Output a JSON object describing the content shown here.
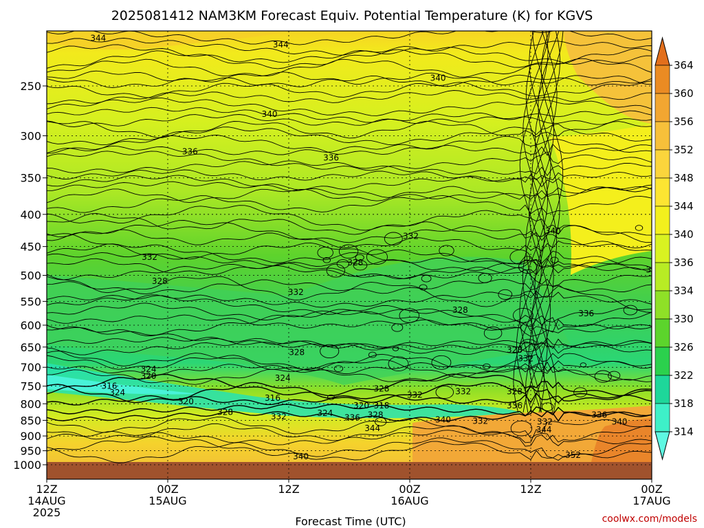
{
  "chart_data": {
    "type": "contour",
    "title": "2025081412 NAM3KM Forecast Equiv. Potential Temperature (K) for KGVS",
    "xlabel": "Forecast Time (UTC)",
    "ylabel": "",
    "credit": "coolwx.com/models",
    "y_scale": "log-pressure",
    "ylim": [
      1000,
      200
    ],
    "y_ticks": [
      "250",
      "300",
      "350",
      "400",
      "450",
      "500",
      "550",
      "600",
      "650",
      "700",
      "750",
      "800",
      "850",
      "900",
      "950",
      "1000"
    ],
    "y_tick_values": [
      250,
      300,
      350,
      400,
      450,
      500,
      550,
      600,
      650,
      700,
      750,
      800,
      850,
      900,
      950,
      1000
    ],
    "xlim": [
      0,
      60
    ],
    "x_ticks": [
      {
        "h": 0,
        "line1": "12Z",
        "line2": "14AUG",
        "line3": "2025"
      },
      {
        "h": 12,
        "line1": "00Z",
        "line2": "15AUG",
        "line3": ""
      },
      {
        "h": 24,
        "line1": "12Z",
        "line2": "",
        "line3": ""
      },
      {
        "h": 36,
        "line1": "00Z",
        "line2": "16AUG",
        "line3": ""
      },
      {
        "h": 48,
        "line1": "12Z",
        "line2": "",
        "line3": ""
      },
      {
        "h": 60,
        "line1": "00Z",
        "line2": "17AUG",
        "line3": ""
      }
    ],
    "grid": true,
    "colorbar": {
      "levels": [
        "364",
        "360",
        "356",
        "352",
        "348",
        "344",
        "340",
        "336",
        "334",
        "330",
        "326",
        "322",
        "318",
        "314"
      ],
      "colors": [
        "#e26f1c",
        "#ea8b23",
        "#f2a631",
        "#f7c03a",
        "#fbd53c",
        "#fde532",
        "#f3f01d",
        "#d9f221",
        "#b8ec24",
        "#8fe027",
        "#5cd42c",
        "#2bd14d",
        "#1ed79a",
        "#3ef0c8",
        "#5ff8e2"
      ]
    },
    "contour_labels": [
      {
        "text": "344",
        "h": 5.1,
        "p": 210
      },
      {
        "text": "344",
        "h": 23.2,
        "p": 215
      },
      {
        "text": "340",
        "h": 38.8,
        "p": 243
      },
      {
        "text": "340",
        "h": 22.1,
        "p": 277
      },
      {
        "text": "336",
        "h": 14.2,
        "p": 318
      },
      {
        "text": "336",
        "h": 28.2,
        "p": 325
      },
      {
        "text": "340",
        "h": 50.2,
        "p": 425
      },
      {
        "text": "332",
        "h": 36.1,
        "p": 433
      },
      {
        "text": "332",
        "h": 10.2,
        "p": 468
      },
      {
        "text": "328",
        "h": 30.6,
        "p": 477
      },
      {
        "text": "332",
        "h": 60.2,
        "p": 490
      },
      {
        "text": "328",
        "h": 11.2,
        "p": 511
      },
      {
        "text": "332",
        "h": 24.7,
        "p": 532
      },
      {
        "text": "328",
        "h": 41.0,
        "p": 568
      },
      {
        "text": "336",
        "h": 53.5,
        "p": 575
      },
      {
        "text": "328",
        "h": 46.4,
        "p": 657
      },
      {
        "text": "332",
        "h": 47.5,
        "p": 678
      },
      {
        "text": "328",
        "h": 24.8,
        "p": 663
      },
      {
        "text": "324",
        "h": 10.1,
        "p": 705
      },
      {
        "text": "320",
        "h": 10.1,
        "p": 723
      },
      {
        "text": "324",
        "h": 23.4,
        "p": 728
      },
      {
        "text": "328",
        "h": 33.2,
        "p": 757
      },
      {
        "text": "316",
        "h": 6.2,
        "p": 750
      },
      {
        "text": "324",
        "h": 7.0,
        "p": 768
      },
      {
        "text": "332",
        "h": 36.5,
        "p": 775
      },
      {
        "text": "332",
        "h": 41.3,
        "p": 765
      },
      {
        "text": "328",
        "h": 46.4,
        "p": 765
      },
      {
        "text": "316",
        "h": 22.4,
        "p": 783
      },
      {
        "text": "320",
        "h": 13.8,
        "p": 793
      },
      {
        "text": "320",
        "h": 31.2,
        "p": 805
      },
      {
        "text": "318",
        "h": 33.2,
        "p": 805
      },
      {
        "text": "336",
        "h": 46.4,
        "p": 805
      },
      {
        "text": "328",
        "h": 17.7,
        "p": 825
      },
      {
        "text": "324",
        "h": 27.6,
        "p": 828
      },
      {
        "text": "328",
        "h": 32.6,
        "p": 833
      },
      {
        "text": "332",
        "h": 23.0,
        "p": 838
      },
      {
        "text": "336",
        "h": 30.3,
        "p": 842
      },
      {
        "text": "340",
        "h": 39.3,
        "p": 848
      },
      {
        "text": "332",
        "h": 43.0,
        "p": 852
      },
      {
        "text": "332",
        "h": 49.4,
        "p": 855
      },
      {
        "text": "336",
        "h": 54.8,
        "p": 833
      },
      {
        "text": "340",
        "h": 56.8,
        "p": 855
      },
      {
        "text": "344",
        "h": 32.3,
        "p": 875
      },
      {
        "text": "344",
        "h": 49.3,
        "p": 880
      },
      {
        "text": "340",
        "h": 25.2,
        "p": 970
      },
      {
        "text": "352",
        "h": 52.2,
        "p": 965
      }
    ]
  }
}
